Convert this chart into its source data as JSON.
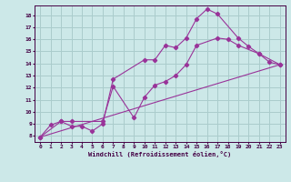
{
  "background_color": "#cce8e8",
  "grid_color": "#aacccc",
  "line_color": "#993399",
  "xlabel": "Windchill (Refroidissement éolien,°C)",
  "xlim": [
    -0.5,
    23.5
  ],
  "ylim": [
    7.5,
    18.8
  ],
  "yticks": [
    8,
    9,
    10,
    11,
    12,
    13,
    14,
    15,
    16,
    17,
    18
  ],
  "xticks": [
    0,
    1,
    2,
    3,
    4,
    5,
    6,
    7,
    8,
    9,
    10,
    11,
    12,
    13,
    14,
    15,
    16,
    17,
    18,
    19,
    20,
    21,
    22,
    23
  ],
  "line1_x": [
    0,
    1,
    2,
    3,
    4,
    5,
    6,
    7,
    10,
    11,
    12,
    13,
    14,
    15,
    16,
    17,
    19,
    20,
    21,
    22,
    23
  ],
  "line1_y": [
    7.9,
    8.9,
    9.2,
    8.8,
    8.8,
    8.4,
    9.0,
    12.7,
    14.3,
    14.3,
    15.5,
    15.3,
    16.1,
    17.7,
    18.5,
    18.1,
    16.1,
    15.4,
    14.8,
    14.1,
    13.9
  ],
  "line2_x": [
    0,
    2,
    3,
    6,
    7,
    9,
    10,
    11,
    12,
    13,
    14,
    15,
    17,
    18,
    19,
    21,
    23
  ],
  "line2_y": [
    7.9,
    9.2,
    9.2,
    9.2,
    12.1,
    9.5,
    11.2,
    12.2,
    12.5,
    13.0,
    13.9,
    15.5,
    16.1,
    16.0,
    15.5,
    14.8,
    13.9
  ],
  "line3_x": [
    0,
    23
  ],
  "line3_y": [
    7.9,
    13.9
  ]
}
